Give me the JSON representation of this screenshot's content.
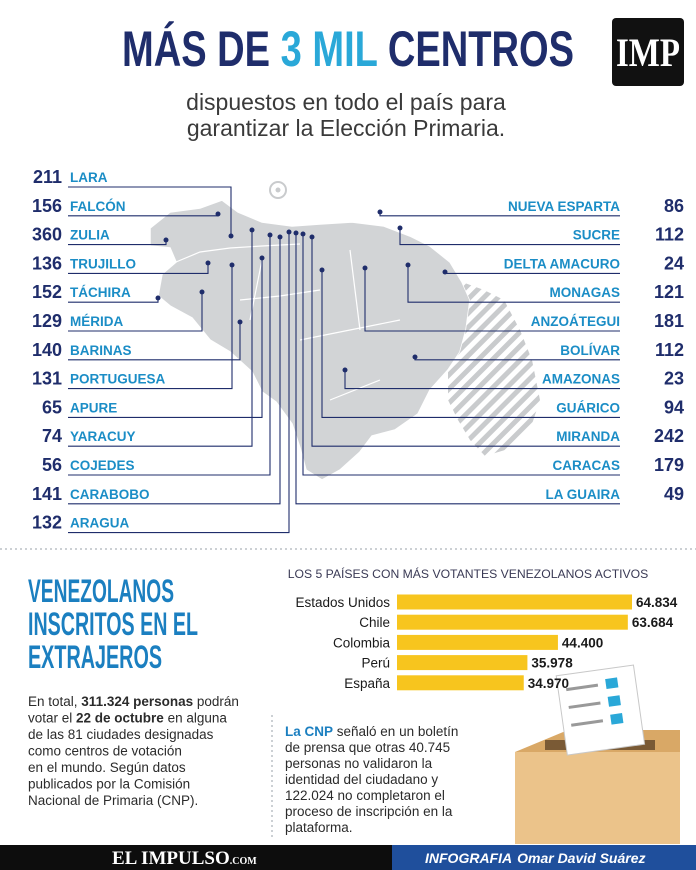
{
  "header": {
    "title": [
      "MÁS DE ",
      "3 MIL",
      " CENTROS"
    ],
    "logo": "IMP",
    "subtitle": [
      "dispuestos en todo el país para",
      "garantizar la Elección Primaria."
    ]
  },
  "states_left": [
    {
      "name": "LARA",
      "value": 211
    },
    {
      "name": "FALCÓN",
      "value": 156
    },
    {
      "name": "ZULIA",
      "value": 360
    },
    {
      "name": "TRUJILLO",
      "value": 136
    },
    {
      "name": "TÁCHIRA",
      "value": 152
    },
    {
      "name": "MÉRIDA",
      "value": 129
    },
    {
      "name": "BARINAS",
      "value": 140
    },
    {
      "name": "PORTUGUESA",
      "value": 131
    },
    {
      "name": "APURE",
      "value": 65
    },
    {
      "name": "YARACUY",
      "value": 74
    },
    {
      "name": "COJEDES",
      "value": 56
    },
    {
      "name": "CARABOBO",
      "value": 141
    },
    {
      "name": "ARAGUA",
      "value": 132
    }
  ],
  "states_right": [
    {
      "name": "NUEVA ESPARTA",
      "value": 86
    },
    {
      "name": "SUCRE",
      "value": 112
    },
    {
      "name": "DELTA AMACURO",
      "value": 24
    },
    {
      "name": "MONAGAS",
      "value": 121
    },
    {
      "name": "ANZOÁTEGUI",
      "value": 181
    },
    {
      "name": "BOLÍVAR",
      "value": 112
    },
    {
      "name": "AMAZONAS",
      "value": 23
    },
    {
      "name": "GUÁRICO",
      "value": 94
    },
    {
      "name": "MIRANDA",
      "value": 242
    },
    {
      "name": "CARACAS",
      "value": 179
    },
    {
      "name": "LA GUAIRA",
      "value": 49
    }
  ],
  "section": {
    "title": [
      "VENEZOLANOS",
      "INSCRITOS EN EL",
      "EXTRAJEROS"
    ],
    "paragraph": [
      [
        {
          "text": "En total, "
        },
        {
          "text": "311.324 personas",
          "strong": true
        },
        {
          "text": " podrán"
        }
      ],
      [
        {
          "text": "votar el "
        },
        {
          "text": "22 de octubre",
          "strong": true
        },
        {
          "text": " en alguna"
        }
      ],
      [
        {
          "text": "de las 81 ciudades designadas"
        }
      ],
      [
        {
          "text": "como centros de votación"
        }
      ],
      [
        {
          "text": "en el mundo. Según datos"
        }
      ],
      [
        {
          "text": "publicados por la Comisión"
        }
      ],
      [
        {
          "text": "Nacional de Primaria (CNP)."
        }
      ]
    ],
    "note": [
      [
        {
          "text": "La CNP",
          "strong": true
        },
        {
          "text": " señaló en un boletín"
        }
      ],
      [
        {
          "text": "de prensa que otras 40.745"
        }
      ],
      [
        {
          "text": "personas no validaron la"
        }
      ],
      [
        {
          "text": "identidad del ciudadano y"
        }
      ],
      [
        {
          "text": "122.024 no completaron el"
        }
      ],
      [
        {
          "text": "proceso de inscripción en la"
        }
      ],
      [
        {
          "text": "plataforma."
        }
      ]
    ]
  },
  "chart_data": {
    "type": "bar",
    "title": "LOS 5 PAÍSES CON MÁS VOTANTES VENEZOLANOS ACTIVOS",
    "categories": [
      "Estados Unidos",
      "Chile",
      "Colombia",
      "Perú",
      "España"
    ],
    "values": [
      64834,
      63684,
      44400,
      35978,
      34970
    ],
    "value_labels": [
      "64.834",
      "63.684",
      "44.400",
      "35.978",
      "34.970"
    ],
    "color": "#f7c51e"
  },
  "footer": {
    "brand": "EL IMPULSO",
    "brand_suffix": ".COM",
    "credit_label": "INFOGRAFIA",
    "credit_name": "Omar David Suárez"
  }
}
